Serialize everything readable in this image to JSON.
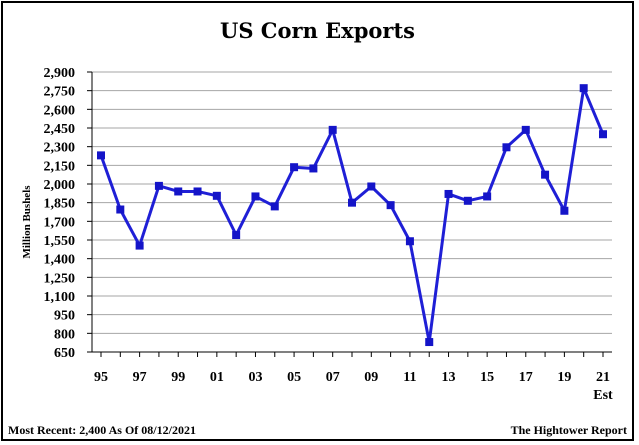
{
  "title": "US Corn Exports",
  "footer": {
    "left": "Most Recent: 2,400 As Of 08/12/2021",
    "right": "The Hightower Report"
  },
  "colors": {
    "series": "#1f1fd6",
    "marker": "#1414c8",
    "grid": "#a6a6a6",
    "axis": "#000000"
  },
  "chart_data": {
    "type": "line",
    "title": "US Corn Exports",
    "ylabel": "Million Bushels",
    "xlabel": "",
    "ylim": [
      650,
      2900
    ],
    "yticks": [
      650,
      800,
      950,
      1100,
      1250,
      1400,
      1550,
      1700,
      1850,
      2000,
      2150,
      2300,
      2450,
      2600,
      2750,
      2900
    ],
    "ytick_labels": [
      "650",
      "800",
      "950",
      "1,100",
      "1,250",
      "1,400",
      "1,550",
      "1,700",
      "1,850",
      "2,000",
      "2,150",
      "2,300",
      "2,450",
      "2,600",
      "2,750",
      "2,900"
    ],
    "x": [
      1995,
      1996,
      1997,
      1998,
      1999,
      2000,
      2001,
      2002,
      2003,
      2004,
      2005,
      2006,
      2007,
      2008,
      2009,
      2010,
      2011,
      2012,
      2013,
      2014,
      2015,
      2016,
      2017,
      2018,
      2019,
      2020,
      2021
    ],
    "xlim": [
      1995,
      2021
    ],
    "xticks": [
      1995,
      1997,
      1999,
      2001,
      2003,
      2005,
      2007,
      2009,
      2011,
      2013,
      2015,
      2017,
      2019,
      2021
    ],
    "xtick_labels": [
      "95",
      "97",
      "99",
      "01",
      "03",
      "05",
      "07",
      "09",
      "11",
      "13",
      "15",
      "17",
      "19",
      "21"
    ],
    "xtick_sublabel": "Est",
    "grid": true,
    "legend": "none",
    "series": [
      {
        "values": [
          2230,
          1795,
          1505,
          1985,
          1940,
          1940,
          1905,
          1590,
          1900,
          1820,
          2135,
          2125,
          2435,
          1850,
          1980,
          1830,
          1540,
          730,
          1920,
          1865,
          1900,
          2295,
          2435,
          2075,
          1785,
          2770,
          2400
        ]
      }
    ]
  }
}
